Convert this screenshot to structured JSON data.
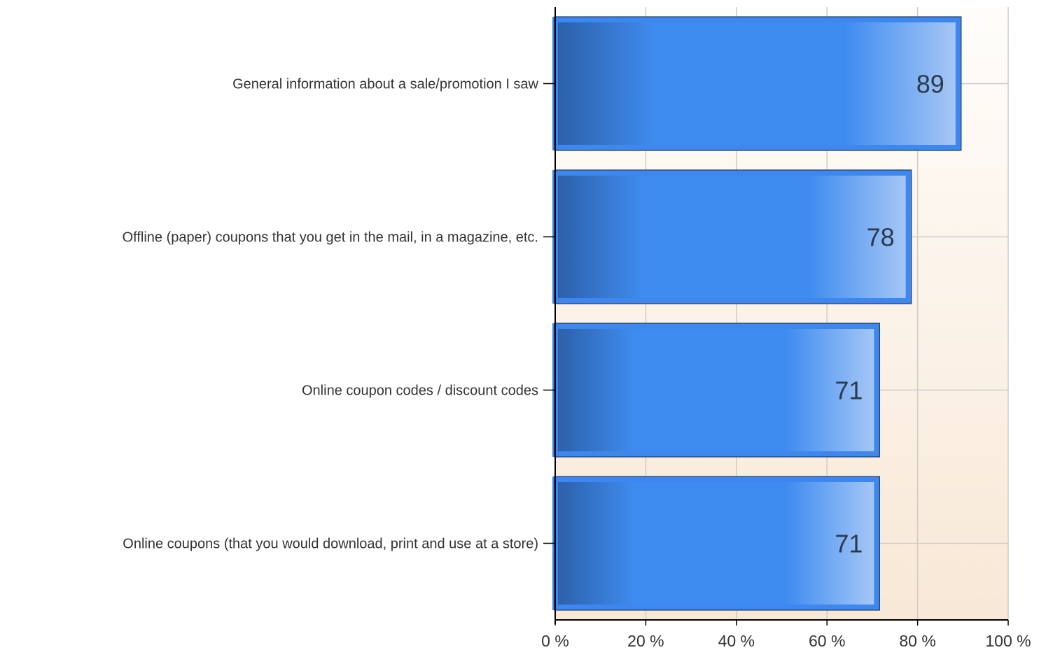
{
  "chart_data": {
    "type": "bar",
    "orientation": "horizontal",
    "categories": [
      "General information about a sale/promotion I saw",
      "Offline (paper) coupons that you get in the mail, in a magazine, etc.",
      "Online coupon codes / discount codes",
      "Online coupons (that you would download, print and use at a store)"
    ],
    "values": [
      89,
      78,
      71,
      71
    ],
    "data_labels": [
      "89",
      "78",
      "71",
      "71"
    ],
    "xlim": [
      0,
      100
    ],
    "x_ticks": [
      0,
      20,
      40,
      60,
      80,
      100
    ],
    "x_tick_labels": [
      "0 %",
      "20 %",
      "40 %",
      "60 %",
      "80 %",
      "100 %"
    ],
    "title": "",
    "xlabel": "",
    "ylabel": "",
    "grid": true,
    "legend": "none",
    "colors": {
      "bar_dark": "#2c5fa8",
      "bar_mid": "#3f8cf0",
      "bar_light": "#a8c8f6",
      "bar_border": "#3d87ee",
      "plot_bg_top": "#fffdfa",
      "plot_bg_bottom": "#f8e8d6",
      "grid": "#cccccc",
      "axis": "#000000"
    }
  }
}
